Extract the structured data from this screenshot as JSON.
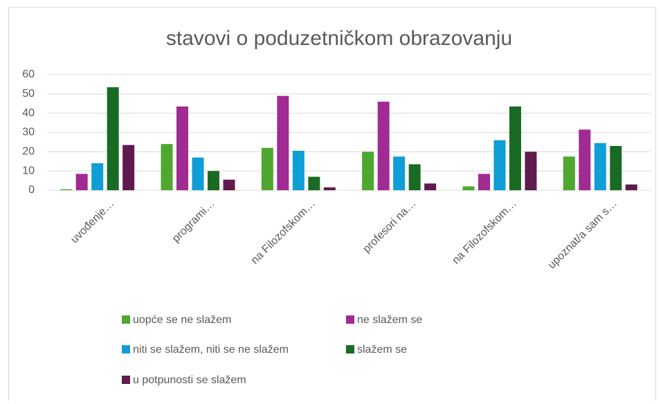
{
  "chart_data": {
    "type": "bar",
    "title": "stavovi o poduzetničkom obrazovanju",
    "categories": [
      "uvođenje…",
      "programi…",
      "na Filozofskom…",
      "profesori na…",
      "na Filozofskom…",
      "upoznat/a sam s…"
    ],
    "series": [
      {
        "name": "uopće se ne slažem",
        "color": "#4ea72e",
        "values": [
          0.5,
          24,
          22,
          20,
          2,
          17.5
        ]
      },
      {
        "name": "ne slažem se",
        "color": "#a02b93",
        "values": [
          8.5,
          43.5,
          49,
          46,
          8.5,
          31.5
        ]
      },
      {
        "name": "niti se slažem, niti se ne slažem",
        "color": "#0f9ed5",
        "values": [
          14,
          17,
          20.5,
          17.5,
          26,
          24.5
        ]
      },
      {
        "name": "slažem se",
        "color": "#196b24",
        "values": [
          53.5,
          10,
          7,
          13.5,
          43.5,
          23
        ]
      },
      {
        "name": "u potpunosti se slažem",
        "color": "#5f1a4e",
        "values": [
          23.5,
          5.5,
          1.5,
          3.5,
          20,
          3
        ]
      }
    ],
    "ylim": [
      0,
      60
    ],
    "yticks": [
      0,
      10,
      20,
      30,
      40,
      50,
      60
    ],
    "grid": true
  }
}
